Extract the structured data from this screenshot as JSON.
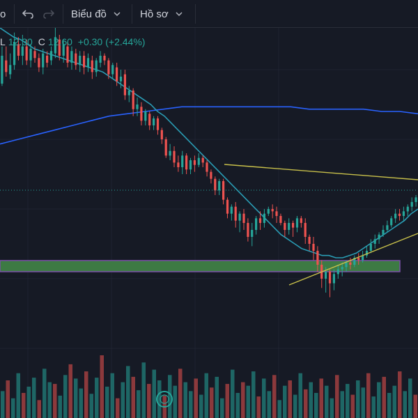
{
  "toolbar": {
    "partial_label": "o",
    "chart_menu_label": "Biểu đồ",
    "profile_menu_label": "Hồ sơ"
  },
  "legend": {
    "low_label": "L",
    "low_value": "12.30",
    "close_label": "C",
    "close_value": "12.60",
    "change": "+0.30",
    "change_pct": "(+2.44%)"
  },
  "colors": {
    "background": "#161a25",
    "up": "#26a69a",
    "down": "#ef5350",
    "ma_fast": "#2a9db5",
    "ma_slow": "#2962ff",
    "trendline": "#c8c04a",
    "zone_fill": "#3d7a44",
    "zone_border": "#7b4fa8"
  },
  "chart_data": {
    "type": "candlestick",
    "candles": [
      [
        36,
        48,
        35,
        52
      ],
      [
        46,
        41,
        39,
        52
      ],
      [
        40,
        44,
        38,
        49
      ],
      [
        44,
        54,
        42,
        58
      ],
      [
        53,
        48,
        46,
        56
      ],
      [
        48,
        52,
        44,
        57
      ],
      [
        52,
        46,
        44,
        55
      ],
      [
        46,
        51,
        43,
        53
      ],
      [
        50,
        47,
        45,
        52
      ],
      [
        47,
        43,
        41,
        49
      ],
      [
        43,
        49,
        40,
        51
      ],
      [
        48,
        45,
        43,
        50
      ],
      [
        46,
        50,
        44,
        52
      ],
      [
        49,
        56,
        47,
        60
      ],
      [
        55,
        48,
        46,
        57
      ],
      [
        48,
        53,
        45,
        55
      ],
      [
        52,
        45,
        43,
        54
      ],
      [
        45,
        50,
        42,
        52
      ],
      [
        49,
        44,
        42,
        51
      ],
      [
        44,
        48,
        41,
        50
      ],
      [
        48,
        43,
        40,
        50
      ],
      [
        43,
        47,
        41,
        49
      ],
      [
        46,
        41,
        38,
        48
      ],
      [
        41,
        46,
        39,
        47
      ],
      [
        45,
        48,
        43,
        50
      ],
      [
        48,
        46,
        44,
        49
      ],
      [
        46,
        40,
        38,
        47
      ],
      [
        40,
        44,
        38,
        45
      ],
      [
        43,
        37,
        35,
        45
      ],
      [
        37,
        39,
        34,
        42
      ],
      [
        40,
        31,
        29,
        42
      ],
      [
        31,
        33,
        28,
        35
      ],
      [
        33,
        25,
        22,
        34
      ],
      [
        25,
        27,
        22,
        30
      ],
      [
        26,
        20,
        18,
        28
      ],
      [
        20,
        24,
        18,
        25
      ],
      [
        23,
        18,
        16,
        24
      ],
      [
        18,
        21,
        16,
        22
      ],
      [
        21,
        16,
        14,
        22
      ],
      [
        16,
        12,
        10,
        17
      ],
      [
        12,
        5,
        4,
        13
      ],
      [
        5,
        7,
        3,
        10
      ],
      [
        7,
        2,
        0,
        9
      ],
      [
        2,
        0,
        -2,
        5
      ],
      [
        0,
        5,
        -3,
        7
      ],
      [
        5,
        -1,
        -3,
        6
      ],
      [
        -1,
        3,
        -3,
        4
      ],
      [
        3,
        1,
        -2,
        5
      ],
      [
        1,
        4,
        0,
        6
      ],
      [
        4,
        2,
        0,
        5
      ],
      [
        2,
        -2,
        -4,
        3
      ],
      [
        -2,
        -5,
        -7,
        -1
      ],
      [
        -5,
        -10,
        -12,
        -4
      ],
      [
        -10,
        -6,
        -12,
        -5
      ],
      [
        -6,
        -14,
        -16,
        -5
      ],
      [
        -14,
        -20,
        -22,
        -13
      ],
      [
        -20,
        -17,
        -23,
        -16
      ],
      [
        -17,
        -23,
        -26,
        -15
      ],
      [
        -23,
        -20,
        -28,
        -19
      ],
      [
        -20,
        -24,
        -27,
        -18
      ],
      [
        -24,
        -30,
        -32,
        -22
      ],
      [
        -30,
        -27,
        -34,
        -24
      ],
      [
        -27,
        -22,
        -29,
        -21
      ],
      [
        -22,
        -24,
        -27,
        -19
      ],
      [
        -24,
        -20,
        -26,
        -18
      ],
      [
        -20,
        -18,
        -21,
        -17
      ],
      [
        -18,
        -19,
        -22,
        -16
      ],
      [
        -19,
        -21,
        -24,
        -17
      ],
      [
        -21,
        -24,
        -25,
        -20
      ],
      [
        -24,
        -27,
        -30,
        -23
      ],
      [
        -27,
        -24,
        -29,
        -22
      ],
      [
        -24,
        -26,
        -30,
        -23
      ],
      [
        -26,
        -22,
        -28,
        -21
      ],
      [
        -22,
        -24,
        -26,
        -21
      ],
      [
        -24,
        -30,
        -33,
        -22
      ],
      [
        -30,
        -33,
        -36,
        -29
      ],
      [
        -33,
        -36,
        -40,
        -30
      ],
      [
        -36,
        -42,
        -45,
        -34
      ],
      [
        -42,
        -48,
        -52,
        -40
      ],
      [
        -48,
        -45,
        -54,
        -43
      ],
      [
        -45,
        -50,
        -56,
        -44
      ],
      [
        -50,
        -46,
        -53,
        -44
      ],
      [
        -46,
        -44,
        -48,
        -42
      ],
      [
        -44,
        -43,
        -47,
        -41
      ],
      [
        -43,
        -41,
        -45,
        -40
      ],
      [
        -41,
        -42,
        -44,
        -39
      ],
      [
        -42,
        -39,
        -43,
        -38
      ],
      [
        -39,
        -40,
        -42,
        -37
      ],
      [
        -40,
        -38,
        -41,
        -36
      ],
      [
        -38,
        -36,
        -39,
        -34
      ],
      [
        -36,
        -33,
        -37,
        -31
      ],
      [
        -33,
        -31,
        -35,
        -29
      ],
      [
        -31,
        -29,
        -33,
        -28
      ],
      [
        -29,
        -27,
        -30,
        -25
      ],
      [
        -27,
        -25,
        -28,
        -23
      ],
      [
        -25,
        -22,
        -26,
        -21
      ],
      [
        -22,
        -20,
        -24,
        -18
      ],
      [
        -20,
        -21,
        -23,
        -18
      ],
      [
        -21,
        -19,
        -23,
        -17
      ],
      [
        -19,
        -17,
        -21,
        -16
      ],
      [
        -17,
        -15,
        -19,
        -13
      ],
      [
        -15,
        -13,
        -17,
        -12
      ]
    ],
    "ma_fast": [
      60,
      58,
      56,
      55,
      53,
      51,
      50,
      49,
      48,
      47,
      46,
      45,
      44,
      43,
      42,
      41,
      39,
      37,
      35,
      33,
      31,
      29,
      27,
      24,
      22,
      19,
      16,
      13,
      10,
      7,
      4,
      1,
      -2,
      -5,
      -8,
      -11,
      -14,
      -17,
      -20,
      -23,
      -26,
      -29,
      -31,
      -33,
      -35,
      -36,
      -37,
      -38,
      -38,
      -39,
      -39,
      -38,
      -37,
      -35,
      -33,
      -31,
      -29,
      -27,
      -25,
      -23,
      -20,
      -18
    ],
    "ma_slow": [
      10,
      12,
      14,
      16,
      18,
      20,
      22,
      23,
      24,
      25,
      26,
      26,
      26,
      26,
      26,
      26,
      26,
      25,
      25,
      25,
      25,
      24,
      24,
      23
    ],
    "volume": [
      30,
      42,
      22,
      50,
      28,
      35,
      45,
      20,
      55,
      40,
      38,
      25,
      48,
      60,
      44,
      33,
      52,
      27,
      45,
      70,
      35,
      50,
      22,
      40,
      58,
      46,
      31,
      62,
      38,
      54,
      42,
      25,
      48,
      36,
      55,
      40,
      30,
      44,
      26,
      50,
      34,
      46,
      22,
      38,
      54,
      28,
      40,
      36,
      52,
      24,
      44,
      30,
      48,
      20,
      36,
      42,
      26,
      50,
      32,
      40,
      28,
      44,
      36,
      22,
      48,
      30,
      38,
      26,
      42,
      34,
      50,
      24,
      40,
      46,
      28,
      36,
      52,
      30,
      44,
      26
    ]
  }
}
